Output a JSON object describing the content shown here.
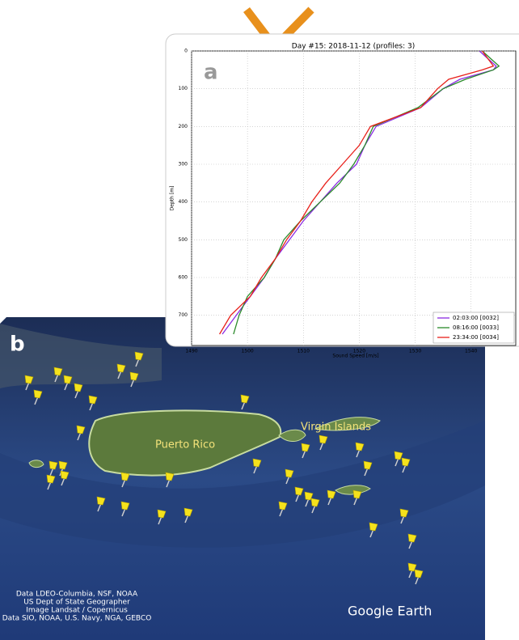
{
  "figure": {
    "panel_a": "a",
    "panel_b": "b"
  },
  "chart_data": {
    "type": "profile",
    "title": "Day #15: 2018-11-12 (profiles: 3)",
    "x_label": "Sound Speed [m/s]",
    "y_label": "Depth [m]",
    "depths": [
      0,
      20,
      40,
      50,
      75,
      100,
      150,
      200,
      250,
      300,
      350,
      400,
      450,
      500,
      550,
      600,
      650,
      700,
      750
    ],
    "series": [
      {
        "name": "02:03:00 [0032]",
        "color": "#8a2be2",
        "values": [
          1541.5,
          1543,
          1544.5,
          1544,
          1538,
          1535,
          1531,
          1523,
          1521,
          1519.5,
          1516,
          1513,
          1510,
          1507.5,
          1505,
          1503,
          1500.5,
          1498,
          1495.5
        ]
      },
      {
        "name": "08:16:00 [0033]",
        "color": "#2a8a2a",
        "values": [
          1542,
          1543.5,
          1545,
          1544,
          1539,
          1535,
          1530.5,
          1522.5,
          1521,
          1519,
          1516.5,
          1513,
          1509.5,
          1506.5,
          1505,
          1503,
          1500,
          1498.5,
          1497.5
        ]
      },
      {
        "name": "23:34:00 [0034]",
        "color": "#e8201a",
        "values": [
          1542,
          1543,
          1544,
          1542,
          1536,
          1534,
          1531,
          1522,
          1520,
          1517,
          1514,
          1511.5,
          1509.5,
          1507,
          1505,
          1502.5,
          1500.5,
          1497,
          1495
        ]
      }
    ],
    "xlim": [
      1490,
      1548
    ],
    "xticks": [
      1490,
      1500,
      1510,
      1520,
      1530,
      1540
    ],
    "ylim": [
      0,
      780
    ],
    "yticks": [
      0,
      100,
      200,
      300,
      400,
      500,
      600,
      700
    ],
    "y_inverted": true,
    "grid": true,
    "legend": "lower right"
  },
  "map": {
    "places": [
      "Puerto Rico",
      "Virgin Islands"
    ],
    "attribution": [
      "Data LDEO-Columbia, NSF, NOAA",
      "US Dept of State Geographer",
      "Image Landsat / Copernicus",
      "Data SIO, NOAA, U.S. Navy, NGA, GEBCO"
    ],
    "brand": "Google Earth"
  }
}
